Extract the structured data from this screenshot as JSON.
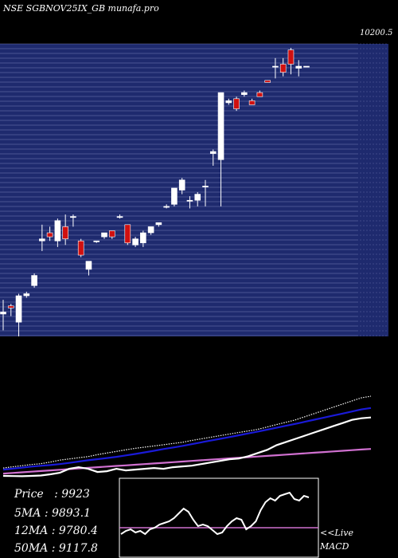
{
  "chart_data": {
    "type": "candlestick",
    "title": "NSE SGBNOV25IX_GB munafa.pro",
    "price_axis_top_label": "10200.5",
    "grid": true,
    "candles": [
      {
        "o": 8890,
        "h": 8960,
        "l": 8810,
        "c": 8900
      },
      {
        "o": 8930,
        "h": 8940,
        "l": 8880,
        "c": 8920
      },
      {
        "o": 8850,
        "h": 8990,
        "l": 8780,
        "c": 8980
      },
      {
        "o": 8980,
        "h": 9000,
        "l": 8970,
        "c": 8990
      },
      {
        "o": 9030,
        "h": 9090,
        "l": 9020,
        "c": 9080
      },
      {
        "o": 9250,
        "h": 9330,
        "l": 9200,
        "c": 9260
      },
      {
        "o": 9290,
        "h": 9320,
        "l": 9250,
        "c": 9270
      },
      {
        "o": 9250,
        "h": 9360,
        "l": 9220,
        "c": 9350
      },
      {
        "o": 9320,
        "h": 9380,
        "l": 9230,
        "c": 9260
      },
      {
        "o": 9370,
        "h": 9380,
        "l": 9320,
        "c": 9370
      },
      {
        "o": 9250,
        "h": 9260,
        "l": 9170,
        "c": 9180
      },
      {
        "o": 9110,
        "h": 9150,
        "l": 9080,
        "c": 9150
      },
      {
        "o": 9250,
        "h": 9250,
        "l": 9240,
        "c": 9250
      },
      {
        "o": 9270,
        "h": 9290,
        "l": 9260,
        "c": 9290
      },
      {
        "o": 9300,
        "h": 9300,
        "l": 9260,
        "c": 9270
      },
      {
        "o": 9370,
        "h": 9380,
        "l": 9360,
        "c": 9370
      },
      {
        "o": 9330,
        "h": 9330,
        "l": 9230,
        "c": 9240
      },
      {
        "o": 9230,
        "h": 9270,
        "l": 9220,
        "c": 9260
      },
      {
        "o": 9240,
        "h": 9300,
        "l": 9220,
        "c": 9290
      },
      {
        "o": 9290,
        "h": 9320,
        "l": 9280,
        "c": 9320
      },
      {
        "o": 9330,
        "h": 9340,
        "l": 9320,
        "c": 9340
      },
      {
        "o": 9420,
        "h": 9430,
        "l": 9410,
        "c": 9420
      },
      {
        "o": 9430,
        "h": 9510,
        "l": 9420,
        "c": 9510
      },
      {
        "o": 9500,
        "h": 9560,
        "l": 9480,
        "c": 9550
      },
      {
        "o": 9450,
        "h": 9470,
        "l": 9410,
        "c": 9450
      },
      {
        "o": 9450,
        "h": 9490,
        "l": 9420,
        "c": 9480
      },
      {
        "o": 9520,
        "h": 9550,
        "l": 9420,
        "c": 9520
      },
      {
        "o": 9680,
        "h": 9700,
        "l": 9620,
        "c": 9690
      },
      {
        "o": 9650,
        "h": 9980,
        "l": 9420,
        "c": 9980
      },
      {
        "o": 9930,
        "h": 9950,
        "l": 9920,
        "c": 9940
      },
      {
        "o": 9950,
        "h": 9960,
        "l": 9890,
        "c": 9900
      },
      {
        "o": 9970,
        "h": 9990,
        "l": 9960,
        "c": 9980
      },
      {
        "o": 9940,
        "h": 9950,
        "l": 9920,
        "c": 9920
      },
      {
        "o": 9980,
        "h": 9990,
        "l": 9960,
        "c": 9960
      },
      {
        "o": 10040,
        "h": 10040,
        "l": 10030,
        "c": 10030
      },
      {
        "o": 10110,
        "h": 10150,
        "l": 10050,
        "c": 10110
      },
      {
        "o": 10120,
        "h": 10150,
        "l": 10060,
        "c": 10080
      },
      {
        "o": 10190,
        "h": 10200,
        "l": 10070,
        "c": 10120
      },
      {
        "o": 10100,
        "h": 10140,
        "l": 10060,
        "c": 10110
      },
      {
        "o": 10110,
        "h": 10110,
        "l": 10110,
        "c": 10110
      }
    ],
    "indicator_lines": [
      {
        "name": "",
        "color": "#ffffff",
        "style": "dotted",
        "values": [
          8870,
          8885,
          8900,
          8915,
          8925,
          8945,
          8970,
          8985,
          9000,
          9015,
          9040,
          9060,
          9080,
          9100,
          9120,
          9135,
          9150,
          9165,
          9180,
          9195,
          9220,
          9240,
          9260,
          9280,
          9300,
          9320,
          9340,
          9360,
          9390,
          9420,
          9450,
          9480,
          9520,
          9560,
          9600,
          9640,
          9680,
          9720,
          9760,
          9780
        ]
      },
      {
        "name": "",
        "color": "#1a1ad8",
        "style": "solid",
        "values": [
          8850,
          8862,
          8875,
          8888,
          8898,
          8908,
          8920,
          8935,
          8952,
          8968,
          8982,
          8996,
          9012,
          9030,
          9048,
          9068,
          9088,
          9110,
          9130,
          9150,
          9172,
          9195,
          9218,
          9240,
          9262,
          9285,
          9308,
          9332,
          9356,
          9380,
          9405,
          9430,
          9456,
          9482,
          9508,
          9534,
          9560,
          9586,
          9612,
          9630
        ]
      },
      {
        "name": "",
        "color": "#d070d0",
        "style": "solid",
        "values": [
          8800,
          8808,
          8816,
          8824,
          8832,
          8840,
          8848,
          8856,
          8864,
          8872,
          8880,
          8888,
          8896,
          8904,
          8912,
          8920,
          8928,
          8936,
          8944,
          8952,
          8960,
          8968,
          8976,
          8984,
          8992,
          9000,
          9008,
          9016,
          9024,
          9032,
          9040,
          9048,
          9056,
          9064,
          9072,
          9080,
          9088,
          9096,
          9104,
          9112
        ]
      },
      {
        "name": "",
        "color": "#ffffff",
        "style": "solid",
        "values": [
          8770,
          8768,
          8766,
          8770,
          8775,
          8790,
          8810,
          8860,
          8880,
          8860,
          8820,
          8830,
          8860,
          8840,
          8850,
          8860,
          8870,
          8860,
          8880,
          8890,
          8900,
          8920,
          8940,
          8960,
          8980,
          8990,
          9020,
          9060,
          9100,
          9160,
          9200,
          9240,
          9280,
          9320,
          9360,
          9400,
          9440,
          9480,
          9500,
          9510
        ]
      }
    ],
    "macd": {
      "values": [
        0.3,
        0.34,
        0.36,
        0.32,
        0.34,
        0.3,
        0.36,
        0.38,
        0.42,
        0.44,
        0.46,
        0.5,
        0.56,
        0.62,
        0.58,
        0.48,
        0.4,
        0.42,
        0.4,
        0.35,
        0.3,
        0.32,
        0.4,
        0.46,
        0.5,
        0.48,
        0.36,
        0.4,
        0.46,
        0.6,
        0.7,
        0.75,
        0.72,
        0.78,
        0.8,
        0.82,
        0.74,
        0.72,
        0.78,
        0.76
      ],
      "signal": 0.38
    }
  },
  "info": {
    "price_label": "Price",
    "price_value": "9923",
    "ma5_label": "5MA",
    "ma5_value": "9893.1",
    "ma12_label": "12MA",
    "ma12_value": "9780.4",
    "ma50_label": "50MA",
    "ma50_value": "9117.8",
    "separator": ":"
  },
  "macd_caption": {
    "live": "<<Live",
    "label": "MACD"
  },
  "colors": {
    "price_panel_bg": "#1e2a6e",
    "grid": "#9aa4d8",
    "up_candle": "#ffffff",
    "down_candle": "#d01010",
    "macd_line": "#ffffff",
    "signal_line": "#d070d0"
  }
}
